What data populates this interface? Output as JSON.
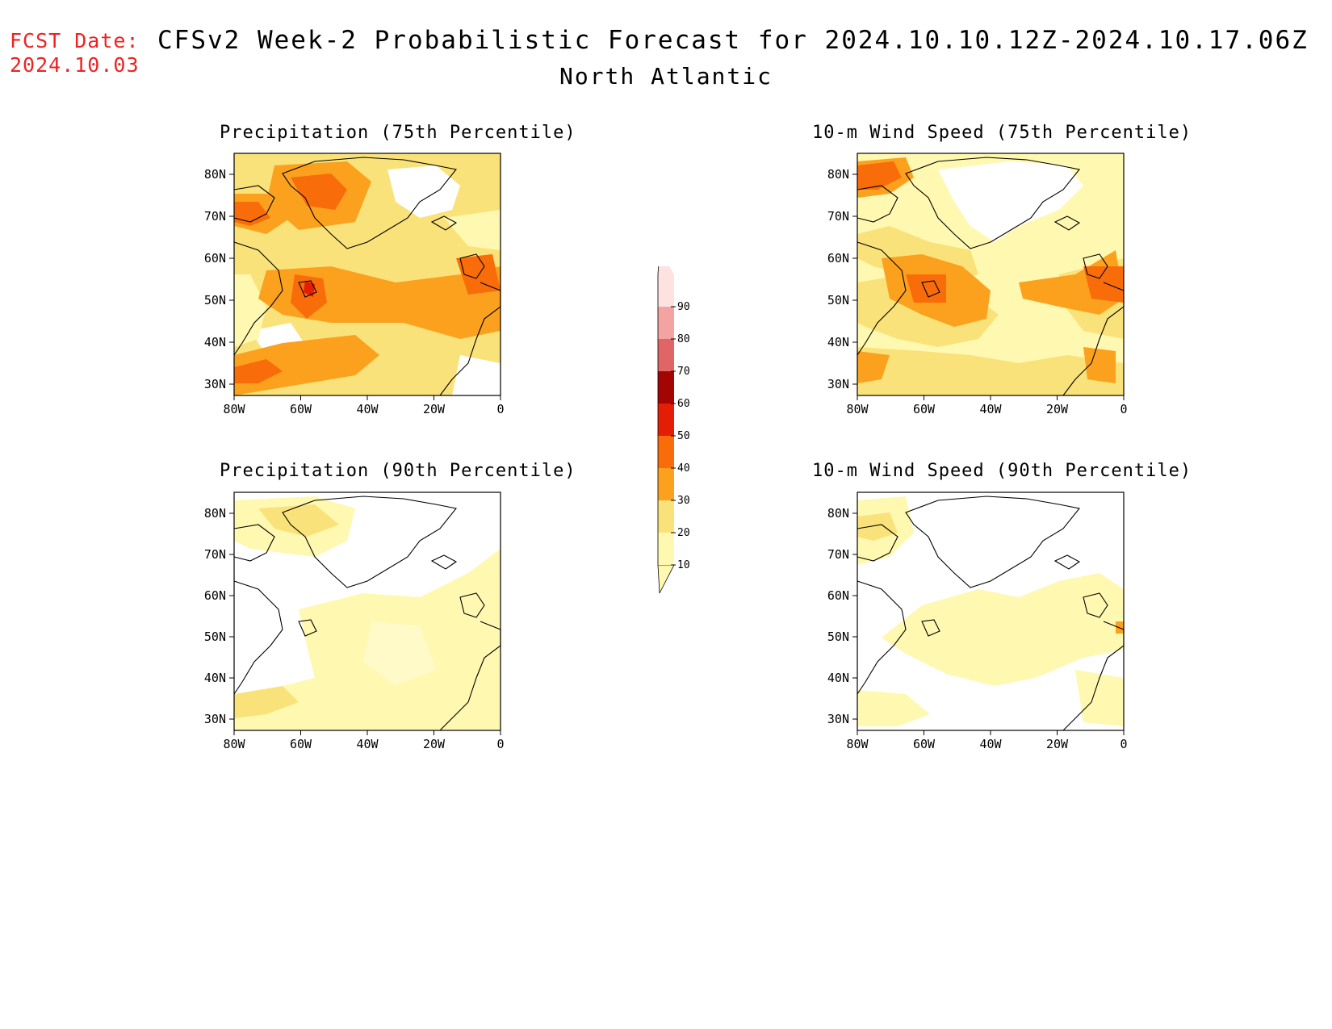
{
  "header": {
    "fcst_label": "FCST Date:",
    "fcst_date": "2024.10.03",
    "title": "CFSv2 Week-2 Probabilistic Forecast for 2024.10.10.12Z-2024.10.17.06Z",
    "subtitle": "North Atlantic"
  },
  "panels": [
    {
      "title": "Precipitation (75th Percentile)"
    },
    {
      "title": "10-m Wind Speed (75th Percentile)"
    },
    {
      "title": "Precipitation (90th Percentile)"
    },
    {
      "title": "10-m Wind Speed (90th Percentile)"
    }
  ],
  "axes": {
    "lon_ticks": [
      "80W",
      "60W",
      "40W",
      "20W",
      "0"
    ],
    "lat_ticks": [
      "80N",
      "70N",
      "60N",
      "50N",
      "40N",
      "30N"
    ]
  },
  "colorbar": {
    "levels": [
      "10",
      "20",
      "30",
      "40",
      "50",
      "60",
      "70",
      "80",
      "90"
    ],
    "colors": [
      "#fff8b0",
      "#fae27a",
      "#fba11e",
      "#f96c0a",
      "#e41e05",
      "#a30505",
      "#e06666",
      "#f4a3a3",
      "#fde2e2"
    ]
  }
}
